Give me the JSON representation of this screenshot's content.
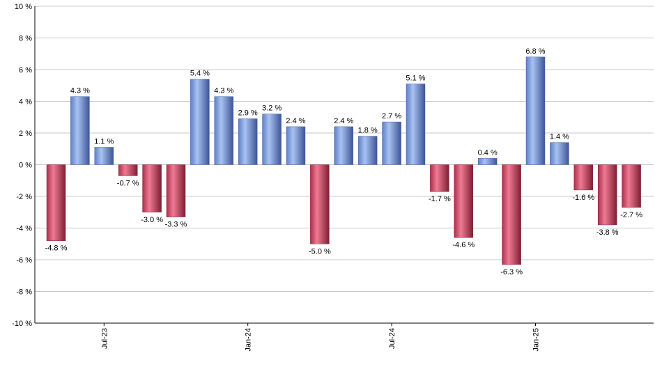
{
  "chart_data": {
    "type": "bar",
    "ylim": [
      -10,
      10
    ],
    "yticks": [
      -10,
      -8,
      -6,
      -4,
      -2,
      0,
      2,
      4,
      6,
      8,
      10
    ],
    "y_unit": " %",
    "grid": true,
    "values": [
      -4.8,
      4.3,
      1.1,
      -0.7,
      -3.0,
      -3.3,
      5.4,
      4.3,
      2.9,
      3.2,
      2.4,
      -5.0,
      2.4,
      1.8,
      2.7,
      5.1,
      -1.7,
      -4.6,
      0.4,
      -6.3,
      6.8,
      1.4,
      -1.6,
      -3.8,
      -2.7
    ],
    "value_labels": [
      "-4.8 %",
      "4.3 %",
      "1.1 %",
      "-0.7 %",
      "-3.0 %",
      "-3.3 %",
      "5.4 %",
      "4.3 %",
      "2.9 %",
      "3.2 %",
      "2.4 %",
      "-5.0 %",
      "2.4 %",
      "1.8 %",
      "2.7 %",
      "5.1 %",
      "-1.7 %",
      "-4.6 %",
      "0.4 %",
      "-6.3 %",
      "6.8 %",
      "1.4 %",
      "-1.6 %",
      "-3.8 %",
      "-2.7 %"
    ],
    "x_tick_labels": [
      {
        "label": "Jul-23",
        "bar_index": 2
      },
      {
        "label": "Jan-24",
        "bar_index": 8
      },
      {
        "label": "Jul-24",
        "bar_index": 14
      },
      {
        "label": "Jan-25",
        "bar_index": 20
      }
    ],
    "colors": {
      "positive": "#7f9fdf",
      "negative": "#c23a57"
    }
  }
}
